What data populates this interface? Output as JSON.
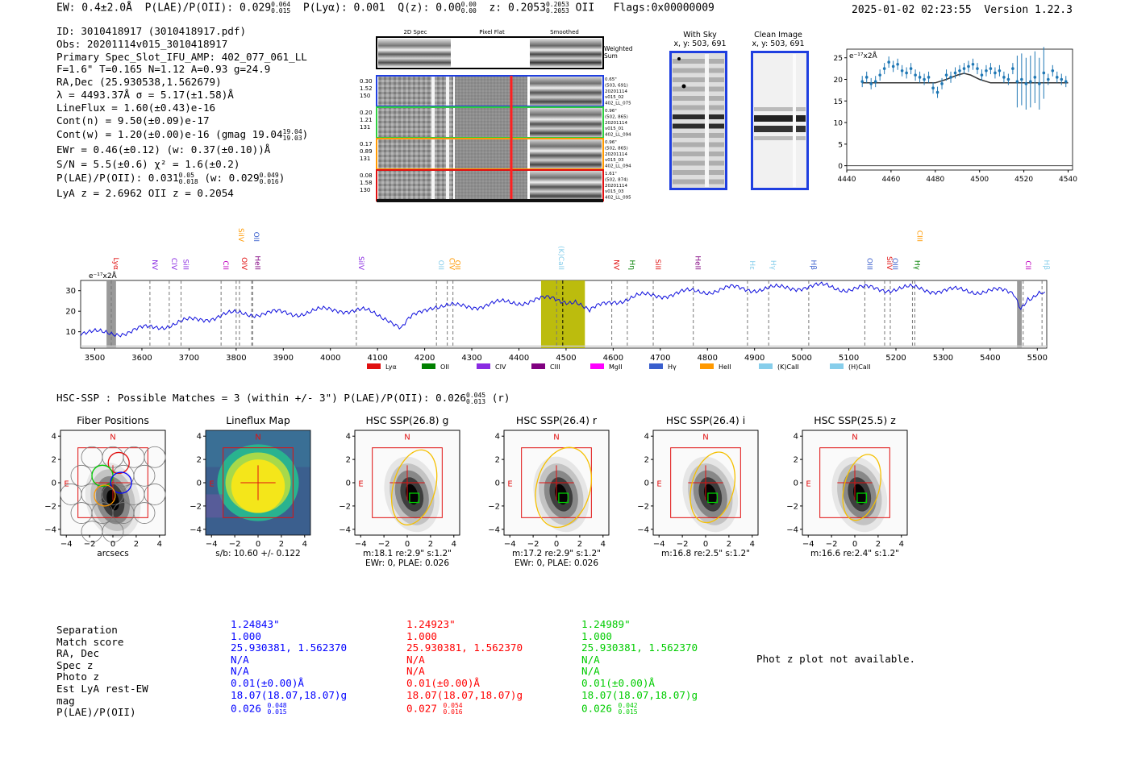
{
  "header": {
    "ew": "EW: 0.4±2.0Å",
    "plae_label": "P(LAE)/P(OII): 0.029",
    "plae_hi": "0.064",
    "plae_lo": "0.015",
    "plya": "P(Lyα): 0.001",
    "qz_label": "Q(z): 0.00",
    "qz_hi": "0.00",
    "qz_lo": "0.00",
    "z_label": "z: 0.2053",
    "z_hi": "0.2053",
    "z_lo": "0.2053",
    "z_type": "OII",
    "flags": "Flags:0x00000009",
    "timestamp": "2025-01-02 02:23:55",
    "version": "Version 1.22.3"
  },
  "info": {
    "id": "ID: 3010418917 (3010418917.pdf)",
    "obs": "Obs: 20201114v015_3010418917",
    "primary": "Primary Spec_Slot_IFU_AMP: 402_077_061_LL",
    "params": "F=1.6\"  T=0.165  N=1.12  A=0.93  g=24.9",
    "radec": "RA,Dec (25.930538,1.562679)",
    "wave": "λ = 4493.37Å   σ = 5.17(±1.58)Å",
    "lineflux": "LineFlux = 1.60(±0.43)e-16",
    "contn": "Cont(n) = 9.50(±0.09)e-17",
    "contw": "Cont(w) = 1.20(±0.00)e-16 (gmag 19.04",
    "contw_hi": "19.04",
    "contw_lo": "19.03",
    "contw_end": ")",
    "ewr": "EWr = 0.46(±0.12) (w: 0.37(±0.10))Å",
    "sn": "S/N = 5.5(±0.6)  χ² = 1.6(±0.2)",
    "plae": "P(LAE)/P(OII): 0.031",
    "plae_hi": "0.05",
    "plae_lo": "0.018",
    "plae_w": "(w: 0.029",
    "plae_w_hi": "0.049",
    "plae_w_lo": "0.016",
    "plae_w_end": ")",
    "lyaz": "LyA z = 2.6962  OII z = 0.2054"
  },
  "cutouts": {
    "col_labels": [
      "2D Spec",
      "Pixel Flat",
      "Smoothed"
    ],
    "weighted": "Weighted\nSum",
    "fibers": [
      {
        "left": [
          "0.30",
          "1.52",
          "150"
        ],
        "right": [
          "0.65\"",
          "(503, 691)",
          "20201114",
          "v015_02",
          "402_LL_075"
        ],
        "color": "#1f3fe0"
      },
      {
        "left": [
          "0.20",
          "1.21",
          "131"
        ],
        "right": [
          "0.96\"",
          "(502, 865)",
          "20201114",
          "v015_01",
          "402_LL_094"
        ],
        "color": "#2ecc40"
      },
      {
        "left": [
          "0.17",
          "0.89",
          "131"
        ],
        "right": [
          "0.96\"",
          "(502, 865)",
          "20201114",
          "v015_03",
          "402_LL_094"
        ],
        "color": "#ff9900"
      },
      {
        "left": [
          "0.08",
          "1.58",
          "130"
        ],
        "right": [
          "1.61\"",
          "(502, 874)",
          "20201114",
          "v015_03",
          "402_LL_095"
        ],
        "color": "#e01010"
      }
    ]
  },
  "sky": {
    "with_sky": "With Sky",
    "with_sky_xy": "x, y: 503, 691",
    "clean": "Clean Image",
    "clean_xy": "x, y: 503, 691"
  },
  "zoom_chart": {
    "ylabel": "e⁻¹⁷x2Å",
    "xticks": [
      "4440",
      "4460",
      "4480",
      "4500",
      "4520",
      "4540"
    ],
    "yticks": [
      "0",
      "5",
      "10",
      "15",
      "20",
      "25"
    ]
  },
  "full_spec": {
    "ylabel": "e⁻¹⁷x2Å",
    "xticks": [
      "3500",
      "3600",
      "3700",
      "3800",
      "3900",
      "4000",
      "4100",
      "4200",
      "4300",
      "4400",
      "4500",
      "4600",
      "4700",
      "4800",
      "4900",
      "5000",
      "5100",
      "5200",
      "5300",
      "5400",
      "5500"
    ],
    "yticks": [
      "10",
      "20",
      "30"
    ],
    "lines": [
      {
        "label": "Lyα",
        "x": 3535,
        "color": "#e01010",
        "row": 1
      },
      {
        "label": "NV",
        "x": 3617,
        "color": "#8a2be2",
        "row": 0
      },
      {
        "label": "CIV",
        "x": 3658,
        "color": "#8a2be2",
        "row": 0
      },
      {
        "label": "SiII",
        "x": 3683,
        "color": "#8a2be2",
        "row": 0
      },
      {
        "label": "CII",
        "x": 3768,
        "color": "#c000c0",
        "row": 0
      },
      {
        "label": "SiIV",
        "x": 3800,
        "color": "#ff9900",
        "row": 2
      },
      {
        "label": "OIV",
        "x": 3807,
        "color": "#e01010",
        "row": 0
      },
      {
        "label": "OII",
        "x": 3833,
        "color": "#3a5fcd",
        "row": 2
      },
      {
        "label": "HeII",
        "x": 3835,
        "color": "#800080",
        "row": 0
      },
      {
        "label": "SiIV",
        "x": 4055,
        "color": "#8a2be2",
        "row": 0
      },
      {
        "label": "OII",
        "x": 4225,
        "color": "#87ceeb",
        "row": 0
      },
      {
        "label": "CIV",
        "x": 4248,
        "color": "#ff9900",
        "row": 0
      },
      {
        "label": "OII",
        "x": 4260,
        "color": "#ff9900",
        "row": 0
      },
      {
        "label": "(K)CaII",
        "x": 4480,
        "color": "#87ceeb",
        "row": 1
      },
      {
        "label": "NV",
        "x": 4597,
        "color": "#e01010",
        "row": 0
      },
      {
        "label": "Hη",
        "x": 4630,
        "color": "#008000",
        "row": 0
      },
      {
        "label": "SiII",
        "x": 4685,
        "color": "#e01010",
        "row": 0
      },
      {
        "label": "HeII",
        "x": 4770,
        "color": "#800080",
        "row": 0
      },
      {
        "label": "Hε",
        "x": 4885,
        "color": "#87ceeb",
        "row": 0
      },
      {
        "label": "Hγ",
        "x": 4930,
        "color": "#87ceeb",
        "row": 0
      },
      {
        "label": "Hβ",
        "x": 5015,
        "color": "#3a5fcd",
        "row": 0
      },
      {
        "label": "OIII",
        "x": 5134,
        "color": "#3a5fcd",
        "row": 0
      },
      {
        "label": "SiIV",
        "x": 5176,
        "color": "#e01010",
        "row": 0
      },
      {
        "label": "OIII",
        "x": 5188,
        "color": "#3a5fcd",
        "row": 0
      },
      {
        "label": "Hγ",
        "x": 5235,
        "color": "#008000",
        "row": 0
      },
      {
        "label": "CIII",
        "x": 5240,
        "color": "#ff9900",
        "row": 2
      },
      {
        "label": "CII",
        "x": 5470,
        "color": "#c000c0",
        "row": 0
      },
      {
        "label": "Hβ",
        "x": 5510,
        "color": "#87ceeb",
        "row": 0
      }
    ],
    "legend": [
      {
        "label": "Lyα",
        "color": "#e01010"
      },
      {
        "label": "OII",
        "color": "#008000"
      },
      {
        "label": "CIV",
        "color": "#8a2be2"
      },
      {
        "label": "CIII",
        "color": "#800080"
      },
      {
        "label": "MgII",
        "color": "#ff00ff"
      },
      {
        "label": "Hγ",
        "color": "#3a5fcd"
      },
      {
        "label": "HeII",
        "color": "#ff9900"
      },
      {
        "label": "(K)CaII",
        "color": "#87ceeb"
      },
      {
        "label": "(H)CaII",
        "color": "#87ceeb"
      }
    ]
  },
  "hsc": {
    "title": "HSC-SSP : Possible Matches = 3 (within +/- 3\")  P(LAE)/P(OII): 0.026",
    "title_hi": "0.045",
    "title_lo": "0.013",
    "title_end": "(r)",
    "panels": [
      {
        "title": "Fiber Positions",
        "xlabel": "arcsecs",
        "xlabel2": ""
      },
      {
        "title": "Lineflux Map",
        "xlabel": "s/b: 10.60 +/- 0.122",
        "xlabel2": ""
      },
      {
        "title": "HSC SSP(26.8) g",
        "xlabel": "m:18.1   re:2.9\"   s:1.2\"",
        "xlabel2": "EWr: 0, PLAE: 0.026"
      },
      {
        "title": "HSC SSP(26.4) r",
        "xlabel": "m:17.2   re:2.9\"   s:1.2\"",
        "xlabel2": "EWr: 0, PLAE: 0.026"
      },
      {
        "title": "HSC SSP(26.4) i",
        "xlabel": "m:16.8   re:2.5\"   s:1.2\"",
        "xlabel2": ""
      },
      {
        "title": "HSC SSP(25.5) z",
        "xlabel": "m:16.6   re:2.4\"   s:1.2\"",
        "xlabel2": ""
      }
    ],
    "axis_ticks": [
      "−4",
      "−2",
      "0",
      "2",
      "4"
    ],
    "compass_n": "N",
    "compass_e": "E"
  },
  "table": {
    "row_labels": [
      "Separation",
      "Match score",
      "RA, Dec",
      "Spec z",
      "Photo z",
      "Est LyA rest-EW",
      "mag",
      "P(LAE)/P(OII)"
    ],
    "columns": [
      {
        "color": "#0000ff",
        "values": [
          "1.24843\"",
          "1.000",
          "25.930381, 1.562370",
          "N/A",
          "N/A",
          "0.01(±0.00)Å",
          "18.07(18.07,18.07)g",
          "0.026"
        ],
        "plae_hi": "0.048",
        "plae_lo": "0.015"
      },
      {
        "color": "#ff0000",
        "values": [
          "1.24923\"",
          "1.000",
          "25.930381, 1.562370",
          "N/A",
          "N/A",
          "0.01(±0.00)Å",
          "18.07(18.07,18.07)g",
          "0.027"
        ],
        "plae_hi": "0.054",
        "plae_lo": "0.016"
      },
      {
        "color": "#00cc00",
        "values": [
          "1.24989\"",
          "1.000",
          "25.930381, 1.562370",
          "N/A",
          "N/A",
          "0.01(±0.00)Å",
          "18.07(18.07,18.07)g",
          "0.026"
        ],
        "plae_hi": "0.042",
        "plae_lo": "0.015"
      }
    ],
    "photz_note": "Phot z plot not available."
  },
  "chart_data": [
    {
      "type": "line",
      "ylabel": "e⁻¹⁷x2Å",
      "xlim": [
        4440,
        4542
      ],
      "ylim": [
        -1,
        27
      ],
      "series": [
        {
          "name": "data",
          "x": [
            4447,
            4449,
            4451,
            4453,
            4455,
            4457,
            4459,
            4461,
            4463,
            4465,
            4467,
            4469,
            4471,
            4473,
            4475,
            4477,
            4479,
            4481,
            4483,
            4485,
            4487,
            4489,
            4491,
            4493,
            4495,
            4497,
            4499,
            4501,
            4503,
            4505,
            4507,
            4509,
            4511,
            4513,
            4515,
            4517,
            4519,
            4521,
            4523,
            4525,
            4527,
            4529,
            4531,
            4533,
            4535,
            4537,
            4539
          ],
          "y": [
            19.5,
            20.5,
            19,
            19.5,
            21,
            22.5,
            24,
            23,
            23.5,
            22,
            21.5,
            22.5,
            21,
            20.5,
            20,
            20.5,
            18,
            17,
            19,
            21,
            20.5,
            21.5,
            22,
            22.5,
            23,
            23.5,
            22.5,
            21,
            22,
            22.5,
            21.5,
            22,
            20.5,
            20,
            22.5,
            19.5,
            20,
            19,
            19.5,
            20.5,
            19,
            21.5,
            20,
            22,
            20.5,
            20,
            19.5
          ]
        },
        {
          "name": "fit",
          "x": [
            4447,
            4480,
            4485,
            4490,
            4493,
            4496,
            4500,
            4505,
            4540
          ],
          "y": [
            19.2,
            19.2,
            20,
            21,
            21.4,
            21,
            20,
            19.2,
            19.2
          ]
        }
      ]
    },
    {
      "type": "line",
      "ylabel": "e⁻¹⁷x2Å",
      "xlim": [
        3470,
        5520
      ],
      "ylim": [
        2,
        35
      ],
      "series": [
        {
          "name": "spectrum",
          "x": [
            3470,
            3520,
            3570,
            3620,
            3670,
            3720,
            3770,
            3820,
            3870,
            3920,
            3970,
            4020,
            4070,
            4120,
            4150,
            4170,
            4190,
            4220,
            4270,
            4320,
            4370,
            4420,
            4470,
            4520,
            4550,
            4600,
            4650,
            4700,
            4750,
            4800,
            4850,
            4900,
            4950,
            5000,
            5050,
            5100,
            5150,
            5200,
            5250,
            5300,
            5350,
            5400,
            5450,
            5465,
            5480,
            5520
          ],
          "y": [
            10,
            9,
            10,
            12,
            14,
            16,
            18,
            19,
            19,
            19,
            20,
            21,
            20,
            17,
            13,
            16,
            21,
            23,
            22,
            23,
            24,
            25,
            26,
            25,
            20,
            25,
            27,
            28,
            29,
            30,
            31,
            31,
            31,
            32,
            32,
            31,
            31,
            31,
            31,
            30,
            30,
            30,
            29,
            22,
            27,
            28
          ]
        }
      ]
    }
  ]
}
